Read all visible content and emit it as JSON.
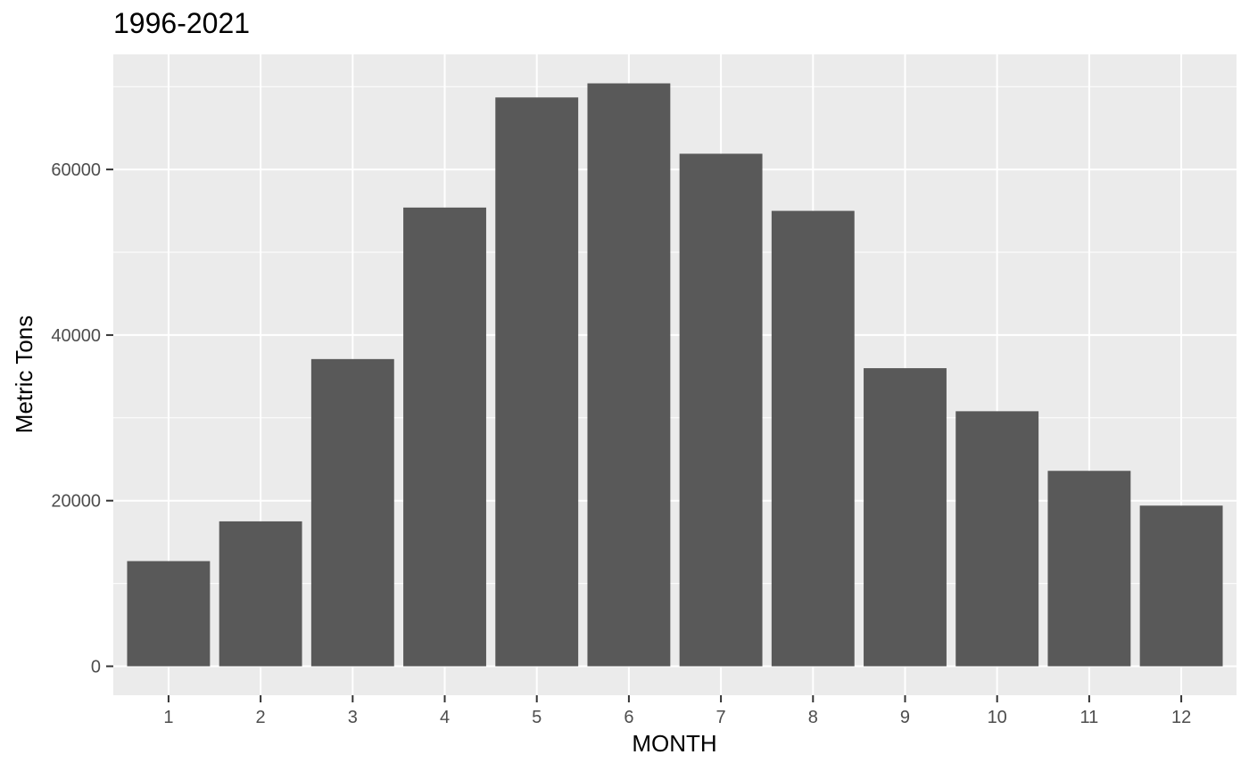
{
  "chart_data": {
    "type": "bar",
    "title": "1996-2021",
    "xlabel": "MONTH",
    "ylabel": "Metric Tons",
    "categories": [
      "1",
      "2",
      "3",
      "4",
      "5",
      "6",
      "7",
      "8",
      "9",
      "10",
      "11",
      "12"
    ],
    "values": [
      12700,
      17500,
      37100,
      55400,
      68700,
      70400,
      61900,
      55000,
      36000,
      30800,
      23600,
      19400
    ],
    "ylim": [
      -3500,
      73900
    ],
    "yticks": [
      0,
      20000,
      40000,
      60000
    ],
    "ytick_labels": [
      "0",
      "20000",
      "40000",
      "60000"
    ],
    "grid": true,
    "colors": {
      "bar": "#595959",
      "panel": "#ebebeb",
      "grid": "#ffffff",
      "tick": "#4d4d4d"
    }
  }
}
